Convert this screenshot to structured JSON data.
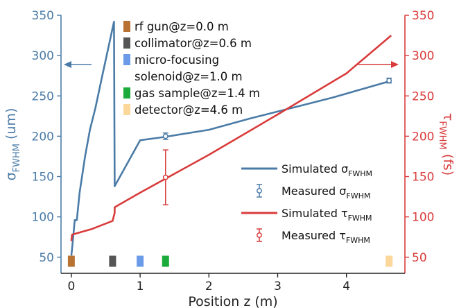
{
  "chart_data": {
    "type": "line",
    "xlabel": "Position z (m)",
    "ylabel_left": {
      "main": "σ",
      "sub": "FWHM",
      "unit": " (um)"
    },
    "ylabel_right": {
      "main": "τ",
      "sub": "FWHM",
      "unit": " (fs)"
    },
    "xlim": [
      -0.15,
      4.85
    ],
    "ylim_left": [
      30,
      350
    ],
    "ylim_right": [
      30,
      350
    ],
    "x_ticks": [
      {
        "v": 0,
        "label": "0"
      },
      {
        "v": 1,
        "label": "1"
      },
      {
        "v": 2,
        "label": "2"
      },
      {
        "v": 3,
        "label": "3"
      },
      {
        "v": 4,
        "label": "4"
      }
    ],
    "y_ticks_left": [
      {
        "v": 50,
        "label": "50"
      },
      {
        "v": 100,
        "label": "100"
      },
      {
        "v": 150,
        "label": "150"
      },
      {
        "v": 200,
        "label": "200"
      },
      {
        "v": 250,
        "label": "250"
      },
      {
        "v": 300,
        "label": "300"
      },
      {
        "v": 350,
        "label": "350"
      }
    ],
    "y_ticks_right": [
      {
        "v": 50,
        "label": "50"
      },
      {
        "v": 100,
        "label": "100"
      },
      {
        "v": 150,
        "label": "150"
      },
      {
        "v": 200,
        "label": "200"
      },
      {
        "v": 250,
        "label": "250"
      },
      {
        "v": 300,
        "label": "300"
      },
      {
        "v": 350,
        "label": "350"
      }
    ],
    "colors": {
      "blue": "#4a7ba7",
      "red": "#d93b3b"
    },
    "series": [
      {
        "name": "Simulated",
        "sub": "FWHM",
        "symbol": "σ",
        "kind": "line",
        "axis": "left",
        "color": "#4a7ba7",
        "points": [
          [
            0.0,
            52
          ],
          [
            0.01,
            60
          ],
          [
            0.03,
            78
          ],
          [
            0.05,
            96
          ],
          [
            0.08,
            96
          ],
          [
            0.12,
            130
          ],
          [
            0.2,
            175
          ],
          [
            0.27,
            208
          ],
          [
            0.35,
            235
          ],
          [
            0.45,
            275
          ],
          [
            0.62,
            342
          ],
          [
            0.63,
            138
          ],
          [
            1.0,
            195
          ],
          [
            1.35,
            199
          ],
          [
            2.0,
            208
          ],
          [
            2.6,
            222
          ],
          [
            3.2,
            235
          ],
          [
            3.8,
            248
          ],
          [
            4.62,
            268
          ]
        ]
      },
      {
        "name": "Measured",
        "sub": "FWHM",
        "symbol": "σ",
        "kind": "errorbar",
        "axis": "left",
        "color": "#4a7ba7",
        "points": [
          {
            "x": 1.37,
            "y": 200,
            "err": 4
          },
          {
            "x": 4.62,
            "y": 269,
            "err": 3
          }
        ]
      },
      {
        "name": "Simulated",
        "sub": "FWHM",
        "symbol": "τ",
        "kind": "line",
        "axis": "right",
        "color": "#d93b3b",
        "points": [
          [
            0.0,
            70
          ],
          [
            0.01,
            78
          ],
          [
            0.3,
            85
          ],
          [
            0.6,
            95
          ],
          [
            0.63,
            105
          ],
          [
            0.63,
            112
          ],
          [
            1.0,
            130
          ],
          [
            2.0,
            177
          ],
          [
            3.0,
            227
          ],
          [
            4.0,
            278
          ],
          [
            4.65,
            325
          ]
        ]
      },
      {
        "name": "Measured",
        "sub": "FWHM",
        "symbol": "τ",
        "kind": "errorbar",
        "axis": "right",
        "color": "#d93b3b",
        "points": [
          {
            "x": 1.37,
            "y": 149,
            "err": 34
          }
        ]
      }
    ],
    "components": [
      {
        "label": "rf gun@z=0.0 m",
        "z": 0.0,
        "color": "#b87333"
      },
      {
        "label": "collimator@z=0.6 m",
        "z": 0.6,
        "color": "#555555"
      },
      {
        "label": "micro-focusing",
        "label2": "solenoid@z=1.0 m",
        "z": 1.0,
        "color": "#6b9be8"
      },
      {
        "label": "gas sample@z=1.4 m",
        "z": 1.37,
        "color": "#1aab3a"
      },
      {
        "label": "detector@z=4.6 m",
        "z": 4.62,
        "color": "#fbd79a"
      }
    ],
    "component_marker_level": 45,
    "legend_position": "center-right",
    "grid": false
  }
}
